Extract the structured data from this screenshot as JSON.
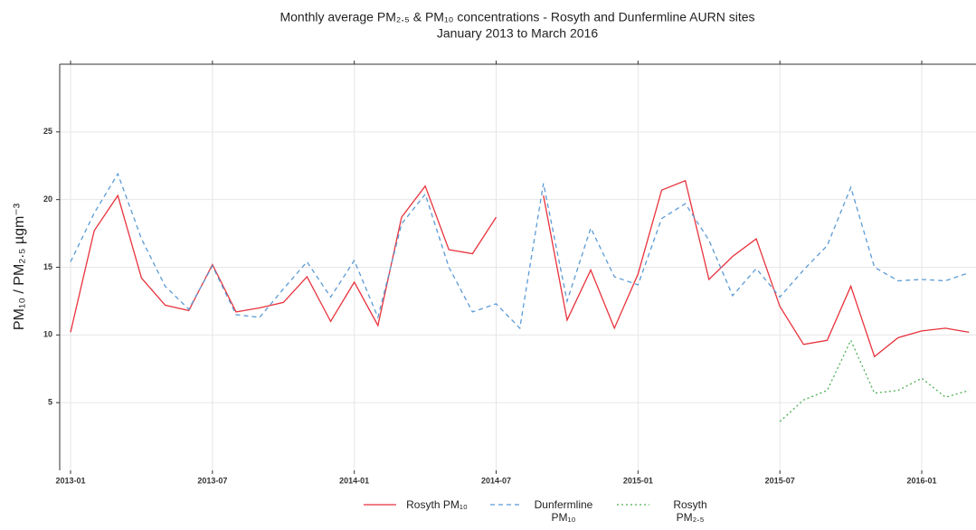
{
  "chart_data": {
    "type": "line",
    "title": "Monthly average PM₂.₅ & PM₁₀ concentrations - Rosyth and Dunfermline AURN sites",
    "subtitle": "January 2013 to March 2016",
    "y_label": "PM₁₀ / PM₂.₅ µgm⁻³",
    "x": [
      "2013-01",
      "2013-02",
      "2013-03",
      "2013-04",
      "2013-05",
      "2013-06",
      "2013-07",
      "2013-08",
      "2013-09",
      "2013-10",
      "2013-11",
      "2013-12",
      "2014-01",
      "2014-02",
      "2014-03",
      "2014-04",
      "2014-05",
      "2014-06",
      "2014-07",
      "2014-08",
      "2014-09",
      "2014-10",
      "2014-11",
      "2014-12",
      "2015-01",
      "2015-02",
      "2015-03",
      "2015-04",
      "2015-05",
      "2015-06",
      "2015-07",
      "2015-08",
      "2015-09",
      "2015-10",
      "2015-11",
      "2015-12",
      "2016-01",
      "2016-02",
      "2016-03"
    ],
    "xticks": [
      "2013-01",
      "2013-07",
      "2014-01",
      "2014-07",
      "2015-01",
      "2015-07",
      "2016-01"
    ],
    "ylim": [
      0,
      30
    ],
    "yticks": [
      5,
      10,
      15,
      20,
      25
    ],
    "grid": true,
    "series": [
      {
        "name": "Rosyth PM₁₀",
        "color": "#e8323c",
        "dash": "none",
        "values": [
          10.2,
          17.7,
          20.3,
          14.2,
          12.2,
          11.8,
          15.2,
          11.7,
          12.0,
          12.4,
          14.3,
          11.0,
          13.9,
          10.7,
          18.7,
          21.0,
          16.3,
          16.0,
          18.7,
          null,
          20.3,
          11.1,
          14.8,
          10.5,
          14.5,
          20.7,
          21.4,
          14.1,
          15.8,
          17.1,
          12.1,
          9.3,
          9.6,
          13.6,
          8.4,
          9.8,
          10.3,
          10.5,
          10.2
        ]
      },
      {
        "name": "Dunfermline PM₁₀",
        "color": "#5b9bd5",
        "dash": "5,4",
        "values": [
          15.4,
          19.0,
          21.9,
          17.1,
          13.6,
          11.9,
          15.1,
          11.5,
          11.3,
          13.4,
          15.4,
          12.8,
          15.5,
          11.3,
          18.2,
          20.4,
          15.0,
          11.7,
          12.3,
          10.5,
          21.2,
          12.5,
          17.9,
          14.3,
          13.7,
          18.6,
          19.7,
          17.0,
          12.9,
          14.9,
          12.8,
          14.8,
          16.6,
          20.9,
          15.0,
          14.0,
          14.1,
          14.0,
          14.6
        ]
      },
      {
        "name": "Rosyth PM₂.₅",
        "color": "#4caf50",
        "dash": "2,3",
        "values": [
          null,
          null,
          null,
          null,
          null,
          null,
          null,
          null,
          null,
          null,
          null,
          null,
          null,
          null,
          null,
          null,
          null,
          null,
          null,
          null,
          null,
          null,
          null,
          null,
          null,
          null,
          null,
          null,
          null,
          null,
          3.6,
          5.2,
          5.9,
          9.6,
          5.7,
          5.9,
          6.8,
          5.4,
          5.9
        ]
      }
    ]
  }
}
